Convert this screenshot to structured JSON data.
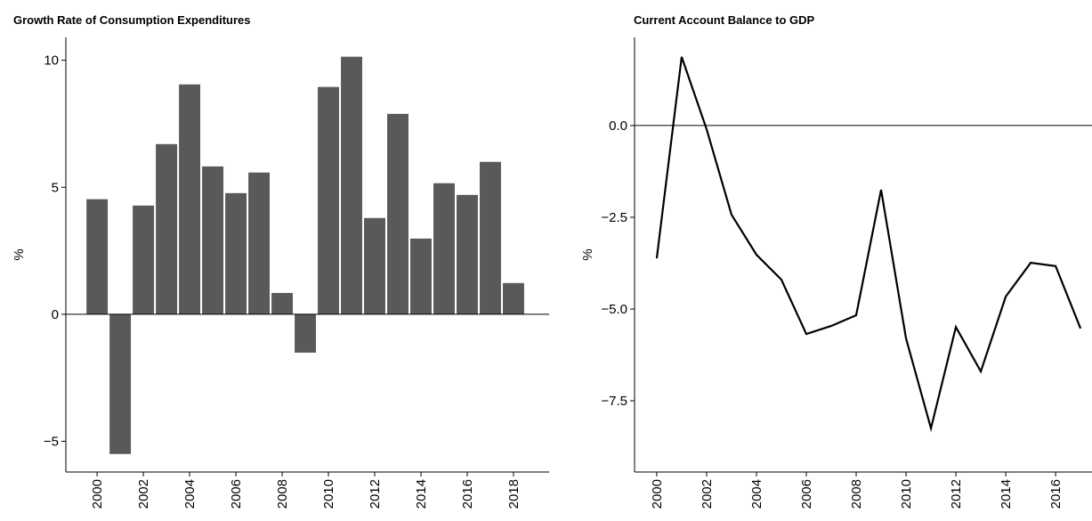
{
  "chart_data": [
    {
      "type": "bar",
      "title": "Growth Rate of Consumption Expenditures",
      "y_label": "%",
      "color": "#595959",
      "x": [
        2000,
        2001,
        2002,
        2003,
        2004,
        2005,
        2006,
        2007,
        2008,
        2009,
        2010,
        2011,
        2012,
        2013,
        2014,
        2015,
        2016,
        2017,
        2018
      ],
      "values": [
        4.53,
        -5.5,
        4.28,
        6.7,
        9.05,
        5.82,
        4.77,
        5.58,
        0.84,
        -1.51,
        8.95,
        10.14,
        3.79,
        7.89,
        2.98,
        5.16,
        4.7,
        6.0,
        1.23
      ],
      "xlim": [
        1998.65,
        2019.54
      ],
      "xticks": [
        2000,
        2002,
        2004,
        2006,
        2008,
        2010,
        2012,
        2014,
        2016,
        2018
      ],
      "ylim": [
        -6.21,
        10.9
      ],
      "yticks": [
        {
          "value": -5,
          "label": "−5"
        },
        0,
        5,
        10
      ],
      "zero_line": true
    },
    {
      "type": "line",
      "title": "Current Account Balance to GDP",
      "y_label": "%",
      "color": "#000000",
      "x": [
        2000,
        2001,
        2002,
        2003,
        2004,
        2005,
        2006,
        2007,
        2008,
        2009,
        2010,
        2011,
        2012,
        2013,
        2014,
        2015,
        2016,
        2017
      ],
      "values": [
        -3.62,
        1.87,
        -0.1,
        -2.43,
        -3.52,
        -4.2,
        -5.68,
        -5.46,
        -5.17,
        -1.75,
        -5.8,
        -8.25,
        -5.49,
        -6.7,
        -4.66,
        -3.74,
        -3.83,
        -5.53
      ],
      "xlim": [
        1999.11,
        2017.46
      ],
      "xticks": [
        2000,
        2002,
        2004,
        2006,
        2008,
        2010,
        2012,
        2014,
        2016
      ],
      "ylim": [
        -9.44,
        2.4
      ],
      "yticks": [
        {
          "value": -7.5,
          "label": "−7.5"
        },
        {
          "value": -5,
          "label": "−5.0"
        },
        {
          "value": -2.5,
          "label": "−2.5"
        },
        {
          "value": 0,
          "label": "0.0"
        }
      ],
      "zero_line": true
    }
  ]
}
